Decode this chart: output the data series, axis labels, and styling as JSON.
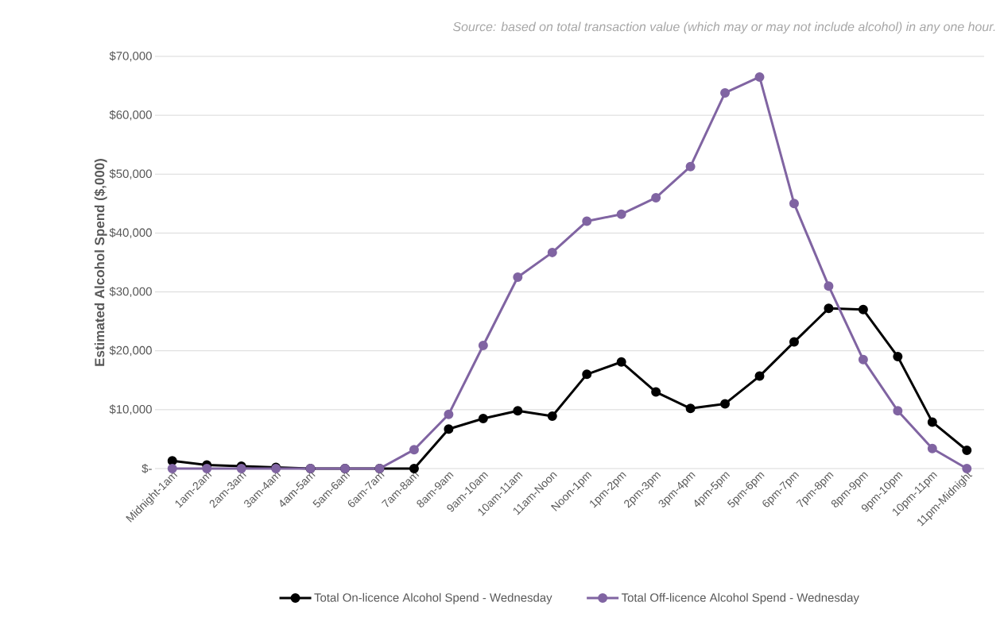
{
  "chart_data": {
    "type": "line",
    "annotations": [
      "Source: based on total transaction value (which may or may not include alcohol) in any one hour."
    ],
    "ylabel": "Estimated Alcohol Spend ($,000)",
    "categories": [
      "Midnight-1am",
      "1am-2am",
      "2am-3am",
      "3am-4am",
      "4am-5am",
      "5am-6am",
      "6am-7am",
      "7am-8am",
      "8am-9am",
      "9am-10am",
      "10am-11am",
      "11am-Noon",
      "Noon-1pm",
      "1pm-2pm",
      "2pm-3pm",
      "3pm-4pm",
      "4pm-5pm",
      "5pm-6pm",
      "6pm-7pm",
      "7pm-8pm",
      "8pm-9pm",
      "9pm-10pm",
      "10pm-11pm",
      "11pm-Midnight"
    ],
    "series": [
      {
        "name": "Total On-licence Alcohol Spend - Wednesday",
        "color": "#000000",
        "values": [
          1300,
          600,
          400,
          200,
          0,
          0,
          0,
          0,
          6700,
          8500,
          9800,
          8900,
          16000,
          18100,
          13000,
          10200,
          11000,
          15700,
          21500,
          27200,
          27000,
          19000,
          7900,
          3100
        ]
      },
      {
        "name": "Total Off-licence Alcohol Spend - Wednesday",
        "color": "#8064a2",
        "values": [
          0,
          0,
          0,
          0,
          0,
          0,
          0,
          3200,
          9200,
          20900,
          32500,
          36700,
          42000,
          43200,
          46000,
          51300,
          63800,
          66500,
          45000,
          31000,
          18500,
          9800,
          3400,
          0
        ]
      }
    ],
    "ylim": [
      0,
      70000
    ],
    "yticks": [
      {
        "value": 0,
        "label": "$-"
      },
      {
        "value": 10000,
        "label": "$10,000"
      },
      {
        "value": 20000,
        "label": "$20,000"
      },
      {
        "value": 30000,
        "label": "$30,000"
      },
      {
        "value": 40000,
        "label": "$40,000"
      },
      {
        "value": 50000,
        "label": "$50,000"
      },
      {
        "value": 60000,
        "label": "$60,000"
      },
      {
        "value": 70000,
        "label": "$70,000"
      }
    ],
    "grid": "y",
    "legend": "bottom",
    "marker": "circle",
    "line_style": "solid"
  }
}
